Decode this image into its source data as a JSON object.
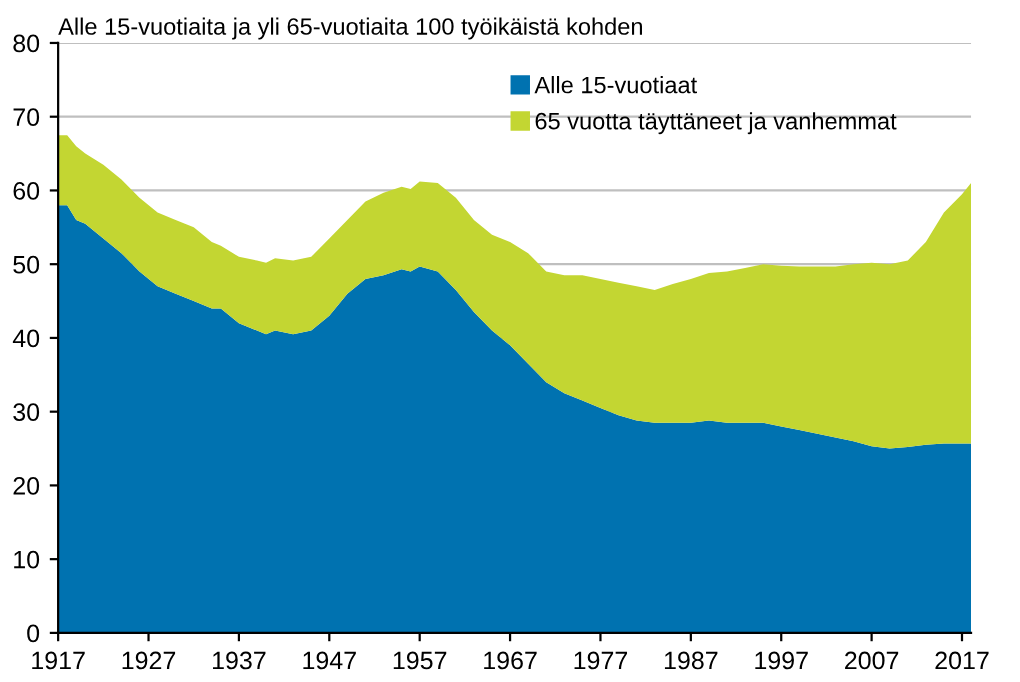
{
  "chart_data": {
    "type": "area",
    "stacked": true,
    "title": "Alle 15-vuotiaita ja yli 65-vuotiaita 100 työikäistä kohden",
    "x": [
      1917,
      1918,
      1919,
      1920,
      1922,
      1924,
      1926,
      1928,
      1930,
      1932,
      1934,
      1935,
      1937,
      1939,
      1940,
      1941,
      1943,
      1945,
      1947,
      1949,
      1951,
      1953,
      1955,
      1956,
      1957,
      1959,
      1961,
      1963,
      1965,
      1967,
      1969,
      1971,
      1973,
      1975,
      1977,
      1979,
      1981,
      1983,
      1985,
      1987,
      1989,
      1991,
      1993,
      1995,
      1997,
      1999,
      2001,
      2003,
      2005,
      2007,
      2009,
      2011,
      2013,
      2015,
      2017,
      2018
    ],
    "series": [
      {
        "name": "Alle 15-vuotiaat",
        "color": "#0072b0",
        "values": [
          58,
          58,
          56,
          55.5,
          53.5,
          51.5,
          49,
          47,
          46,
          45,
          44,
          44,
          42,
          41,
          40.5,
          41,
          40.5,
          41,
          43,
          46,
          48,
          48.5,
          49.3,
          49,
          49.7,
          49,
          46.5,
          43.5,
          41,
          39,
          36.5,
          34,
          32.5,
          31.5,
          30.5,
          29.5,
          28.8,
          28.5,
          28.5,
          28.5,
          28.8,
          28.5,
          28.5,
          28.5,
          28,
          27.5,
          27,
          26.5,
          26,
          25.3,
          25,
          25.2,
          25.5,
          25.7,
          25.7,
          25.7
        ]
      },
      {
        "name": "65 vuotta täyttäneet ja vanhemmat",
        "color": "#c3d632",
        "values": [
          9.5,
          9.5,
          10,
          9.5,
          10,
          10,
          10,
          10,
          10,
          10,
          9,
          8.5,
          9,
          9.5,
          9.7,
          9.8,
          10,
          10,
          10.5,
          10,
          10.5,
          11.2,
          11.2,
          11.2,
          11.5,
          12,
          12.5,
          12.5,
          13,
          14,
          15,
          15,
          16,
          17,
          17.5,
          18,
          18.2,
          18,
          18.8,
          19.5,
          20,
          20.5,
          21,
          21.5,
          21.8,
          22.2,
          22.7,
          23.2,
          24,
          24.9,
          25,
          25.3,
          27.5,
          31.3,
          33.8,
          35.3
        ]
      }
    ],
    "xlim": [
      1917,
      2018
    ],
    "xticks": [
      1917,
      1927,
      1937,
      1947,
      1957,
      1967,
      1977,
      1987,
      1997,
      2007,
      2017
    ],
    "ylim": [
      0,
      80
    ],
    "yticks": [
      0,
      10,
      20,
      30,
      40,
      50,
      60,
      70,
      80
    ],
    "grid": "y",
    "legend": "top right"
  }
}
